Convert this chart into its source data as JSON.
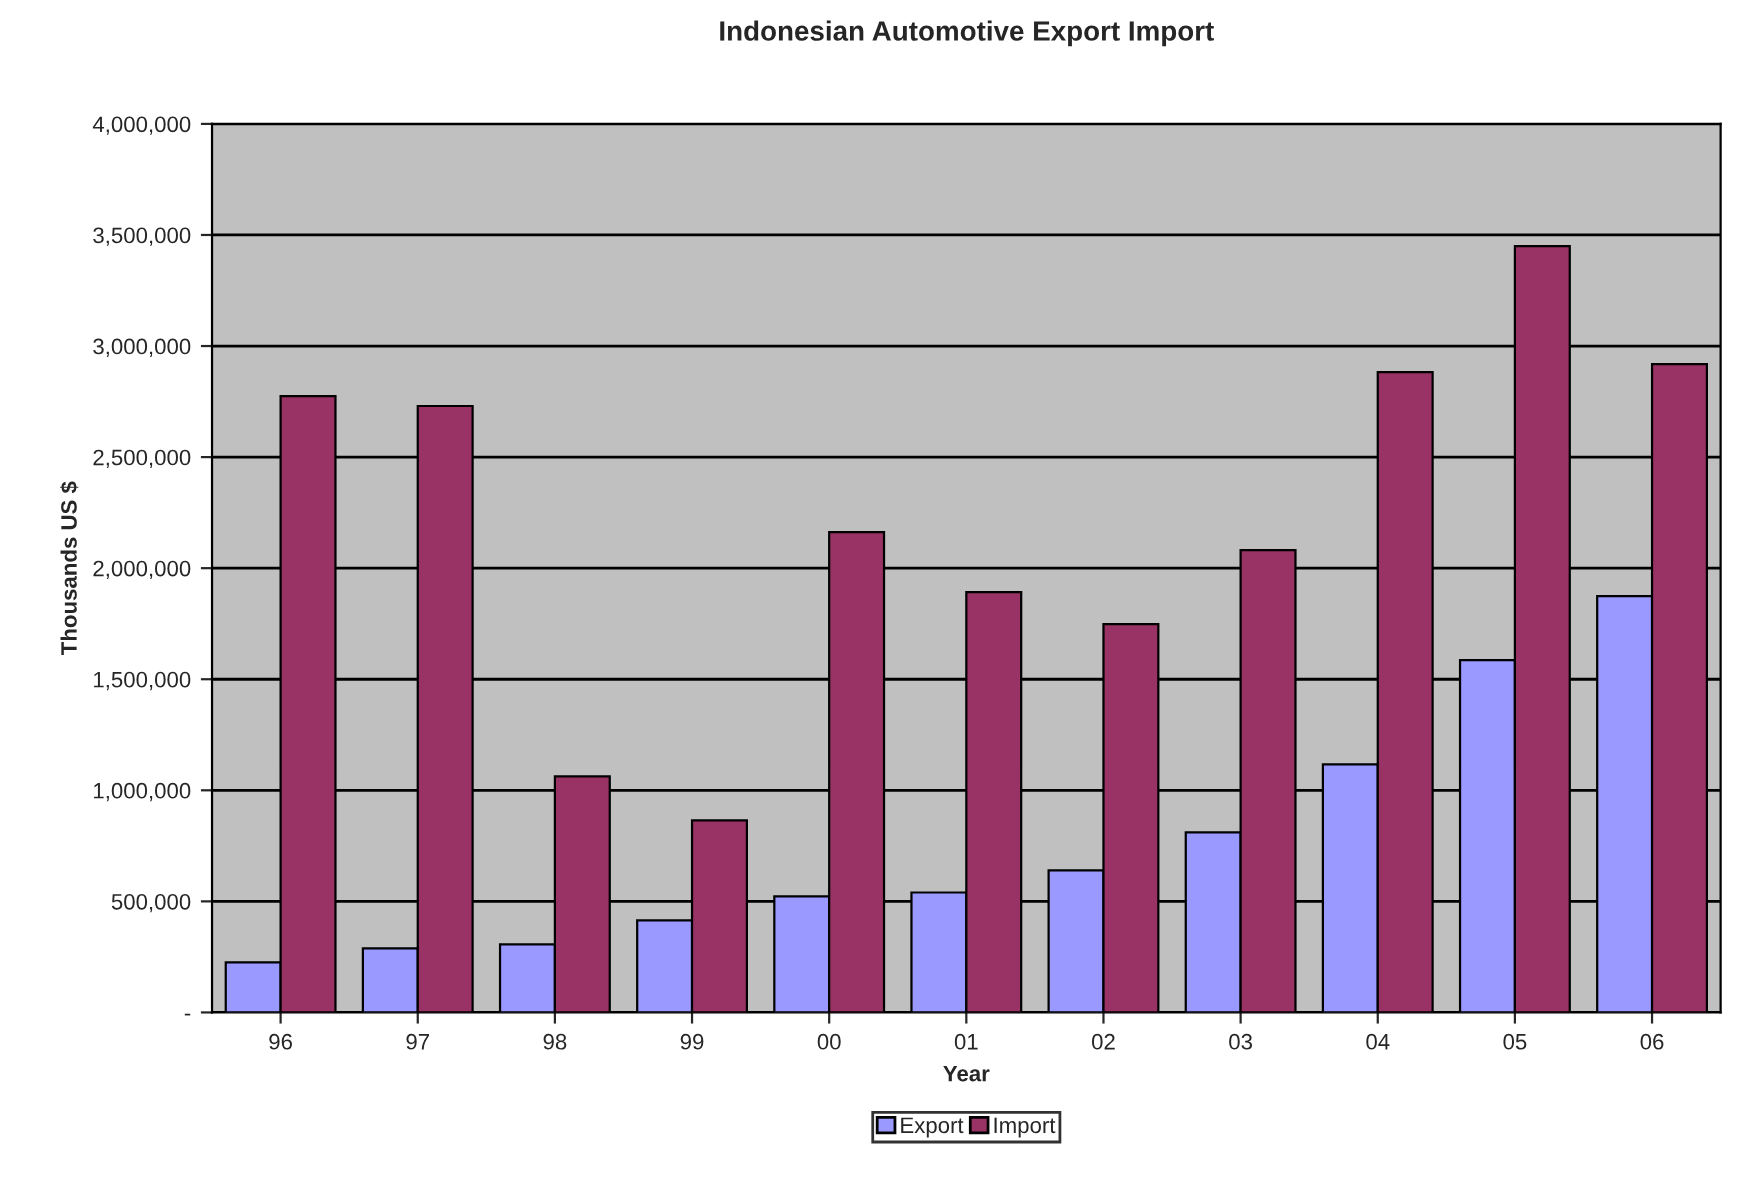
{
  "chart_data": {
    "type": "bar",
    "title": "Indonesian Automotive Export Import",
    "xlabel": "Year",
    "ylabel": "Thousands US $",
    "categories": [
      "96",
      "97",
      "98",
      "99",
      "00",
      "01",
      "02",
      "03",
      "04",
      "05",
      "06"
    ],
    "series": [
      {
        "name": "Export",
        "color": "#9999ff",
        "values": [
          225000,
          288000,
          306000,
          414000,
          522000,
          540000,
          640000,
          811000,
          1117000,
          1586000,
          1874000
        ]
      },
      {
        "name": "Import",
        "color": "#993366",
        "values": [
          2775000,
          2730000,
          1063000,
          865000,
          2162000,
          1892000,
          1748000,
          2081000,
          2883000,
          3450000,
          2919000
        ]
      }
    ],
    "ylim": [
      0,
      4000000
    ],
    "yticks": [
      {
        "value": 0,
        "label": "-"
      },
      {
        "value": 500000,
        "label": "500,000"
      },
      {
        "value": 1000000,
        "label": "1,000,000"
      },
      {
        "value": 1500000,
        "label": "1,500,000"
      },
      {
        "value": 2000000,
        "label": "2,000,000"
      },
      {
        "value": 2500000,
        "label": "2,500,000"
      },
      {
        "value": 3000000,
        "label": "3,000,000"
      },
      {
        "value": 3500000,
        "label": "3,500,000"
      },
      {
        "value": 4000000,
        "label": "4,000,000"
      }
    ],
    "grid": "y",
    "legend": "bottom"
  }
}
